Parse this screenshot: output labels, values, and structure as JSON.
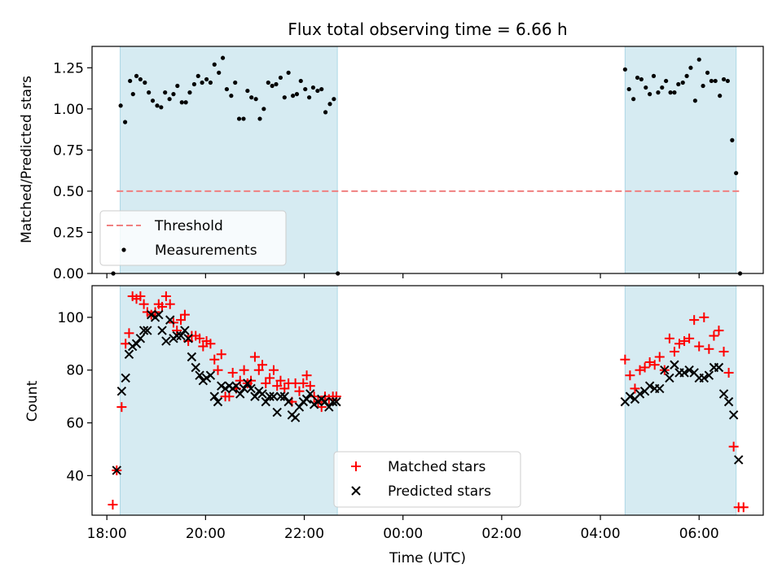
{
  "chart_data": [
    {
      "type": "scatter",
      "title": "Flux total observing time = 6.66 h",
      "xlabel": "",
      "ylabel": "Matched/Predicted stars",
      "x_unit": "hours after 18:00 UTC",
      "xlim": [
        -0.3,
        13.3
      ],
      "ylim": [
        0.0,
        1.38
      ],
      "yticks": [
        "0.00",
        "0.25",
        "0.50",
        "0.75",
        "1.00",
        "1.25"
      ],
      "shaded_intervals": [
        [
          0.27,
          4.67
        ],
        [
          10.5,
          12.75
        ]
      ],
      "threshold": {
        "value": 0.5,
        "x": [
          0.2,
          12.85
        ]
      },
      "legend": {
        "position": "lower-left",
        "entries": [
          "Threshold",
          "Measurements"
        ]
      },
      "series": [
        {
          "name": "Measurements",
          "x": [
            0.13,
            0.28,
            0.37,
            0.47,
            0.53,
            0.6,
            0.68,
            0.77,
            0.85,
            0.93,
            1.02,
            1.1,
            1.18,
            1.27,
            1.35,
            1.43,
            1.52,
            1.6,
            1.68,
            1.77,
            1.85,
            1.93,
            2.02,
            2.1,
            2.18,
            2.27,
            2.35,
            2.43,
            2.52,
            2.6,
            2.68,
            2.77,
            2.85,
            2.93,
            3.02,
            3.1,
            3.18,
            3.27,
            3.35,
            3.43,
            3.52,
            3.6,
            3.68,
            3.77,
            3.85,
            3.93,
            4.02,
            4.1,
            4.18,
            4.27,
            4.35,
            4.43,
            4.52,
            4.6,
            4.68,
            10.5,
            10.58,
            10.67,
            10.75,
            10.83,
            10.92,
            11.0,
            11.08,
            11.17,
            11.25,
            11.33,
            11.42,
            11.5,
            11.58,
            11.67,
            11.75,
            11.83,
            11.92,
            12.0,
            12.08,
            12.17,
            12.25,
            12.33,
            12.42,
            12.5,
            12.58,
            12.67,
            12.75,
            12.83
          ],
          "y": [
            0.0,
            1.02,
            0.92,
            1.17,
            1.09,
            1.2,
            1.18,
            1.16,
            1.1,
            1.05,
            1.02,
            1.01,
            1.1,
            1.06,
            1.09,
            1.14,
            1.04,
            1.04,
            1.1,
            1.15,
            1.2,
            1.16,
            1.18,
            1.16,
            1.27,
            1.22,
            1.31,
            1.12,
            1.08,
            1.16,
            0.94,
            0.94,
            1.11,
            1.07,
            1.06,
            0.94,
            1.0,
            1.16,
            1.14,
            1.15,
            1.19,
            1.07,
            1.22,
            1.08,
            1.09,
            1.17,
            1.12,
            1.07,
            1.13,
            1.11,
            1.12,
            0.98,
            1.03,
            1.06,
            0.0,
            1.24,
            1.12,
            1.06,
            1.19,
            1.18,
            1.13,
            1.09,
            1.2,
            1.1,
            1.13,
            1.17,
            1.1,
            1.1,
            1.15,
            1.16,
            1.2,
            1.25,
            1.05,
            1.3,
            1.14,
            1.22,
            1.17,
            1.17,
            1.08,
            1.18,
            1.17,
            0.81,
            0.61,
            0.0
          ]
        }
      ]
    },
    {
      "type": "scatter",
      "title": "",
      "xlabel": "Time (UTC)",
      "ylabel": "Count",
      "x_unit": "hours after 18:00 UTC",
      "xlim": [
        -0.3,
        13.3
      ],
      "ylim": [
        25,
        112
      ],
      "xticks": [
        "18:00",
        "20:00",
        "22:00",
        "00:00",
        "02:00",
        "04:00",
        "06:00"
      ],
      "yticks": [
        "40",
        "60",
        "80",
        "100"
      ],
      "shaded_intervals": [
        [
          0.27,
          4.67
        ],
        [
          10.5,
          12.75
        ]
      ],
      "legend": {
        "position": "lower-center",
        "entries": [
          "Matched stars",
          "Predicted stars"
        ]
      },
      "series": [
        {
          "name": "Matched stars",
          "marker": "+",
          "color": "#ff0000",
          "x": [
            0.12,
            0.2,
            0.3,
            0.38,
            0.45,
            0.52,
            0.6,
            0.68,
            0.75,
            0.82,
            0.9,
            0.98,
            1.05,
            1.12,
            1.2,
            1.28,
            1.35,
            1.42,
            1.5,
            1.58,
            1.65,
            1.72,
            1.8,
            1.88,
            1.95,
            2.02,
            2.1,
            2.18,
            2.25,
            2.32,
            2.4,
            2.48,
            2.55,
            2.62,
            2.7,
            2.78,
            2.85,
            2.92,
            3.0,
            3.08,
            3.15,
            3.22,
            3.3,
            3.38,
            3.45,
            3.52,
            3.6,
            3.68,
            3.75,
            3.82,
            3.9,
            3.98,
            4.05,
            4.12,
            4.2,
            4.28,
            4.35,
            4.42,
            4.5,
            4.58,
            4.65,
            10.5,
            10.6,
            10.7,
            10.8,
            10.9,
            11.0,
            11.1,
            11.2,
            11.3,
            11.4,
            11.5,
            11.6,
            11.7,
            11.8,
            11.9,
            12.0,
            12.1,
            12.2,
            12.3,
            12.4,
            12.5,
            12.6,
            12.7,
            12.8,
            12.9
          ],
          "y": [
            29,
            42,
            66,
            90,
            94,
            108,
            107,
            108,
            105,
            102,
            101,
            102,
            105,
            104,
            108,
            105,
            98,
            95,
            99,
            101,
            91,
            93,
            93,
            92,
            89,
            91,
            90,
            84,
            80,
            86,
            70,
            70,
            79,
            73,
            76,
            80,
            75,
            76,
            85,
            80,
            82,
            75,
            77,
            80,
            74,
            76,
            73,
            75,
            68,
            75,
            72,
            75,
            78,
            74,
            70,
            68,
            66,
            70,
            69,
            70,
            70,
            84,
            78,
            73,
            80,
            81,
            83,
            82,
            85,
            80,
            92,
            87,
            90,
            91,
            92,
            99,
            89,
            100,
            88,
            93,
            95,
            87,
            79,
            51,
            28,
            28
          ]
        },
        {
          "name": "Predicted stars",
          "marker": "x",
          "color": "#000000",
          "x": [
            0.2,
            0.3,
            0.38,
            0.45,
            0.52,
            0.6,
            0.68,
            0.75,
            0.82,
            0.9,
            0.98,
            1.05,
            1.12,
            1.2,
            1.28,
            1.35,
            1.42,
            1.5,
            1.58,
            1.65,
            1.72,
            1.8,
            1.88,
            1.95,
            2.02,
            2.1,
            2.18,
            2.25,
            2.32,
            2.4,
            2.48,
            2.55,
            2.62,
            2.7,
            2.78,
            2.85,
            2.92,
            3.0,
            3.08,
            3.15,
            3.22,
            3.3,
            3.38,
            3.45,
            3.52,
            3.6,
            3.68,
            3.75,
            3.82,
            3.9,
            3.98,
            4.05,
            4.12,
            4.2,
            4.28,
            4.35,
            4.42,
            4.5,
            4.58,
            4.65,
            10.5,
            10.6,
            10.7,
            10.8,
            10.9,
            11.0,
            11.1,
            11.2,
            11.3,
            11.4,
            11.5,
            11.6,
            11.7,
            11.8,
            11.9,
            12.0,
            12.1,
            12.2,
            12.3,
            12.4,
            12.5,
            12.6,
            12.7,
            12.8
          ],
          "y": [
            42,
            72,
            77,
            86,
            89,
            90,
            92,
            95,
            95,
            101,
            100,
            101,
            95,
            91,
            99,
            92,
            93,
            93,
            95,
            92,
            85,
            81,
            78,
            76,
            77,
            78,
            70,
            68,
            74,
            73,
            74,
            73,
            74,
            71,
            73,
            75,
            73,
            70,
            72,
            71,
            68,
            70,
            70,
            64,
            70,
            70,
            68,
            63,
            62,
            66,
            68,
            69,
            71,
            67,
            68,
            69,
            68,
            66,
            68,
            68,
            68,
            70,
            69,
            71,
            72,
            74,
            73,
            73,
            80,
            77,
            82,
            79,
            79,
            80,
            79,
            77,
            77,
            78,
            81,
            81,
            71,
            68,
            63,
            46
          ]
        }
      ]
    }
  ]
}
